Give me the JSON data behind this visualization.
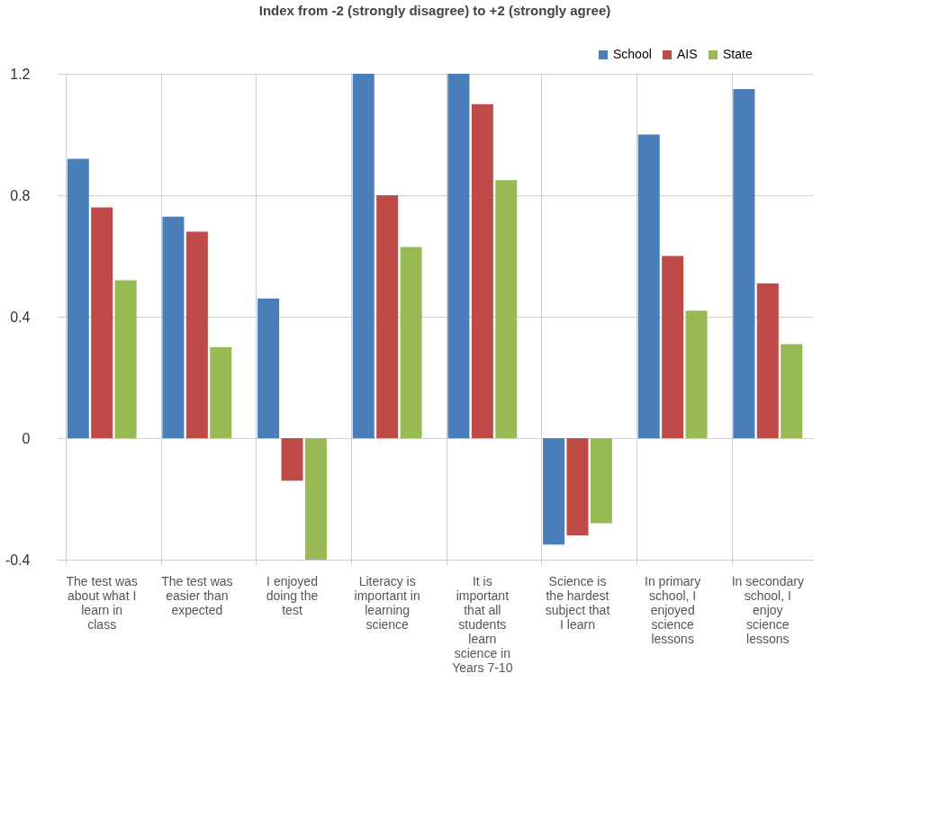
{
  "chart_data": {
    "type": "bar",
    "title": "Index from  -2 (strongly disagree) to +2 (strongly agree)",
    "categories": [
      "The test was about what I learn in class",
      "The test was easier than expected",
      "I enjoyed doing the test",
      "Literacy is important in learning science",
      "It is important that all students learn science in Years 7-10",
      "Science is the hardest subject that I learn",
      "In primary school, I enjoyed science lessons",
      "In secondary school, I enjoy science lessons"
    ],
    "series": [
      {
        "name": "School",
        "color": "#4a7ebb",
        "values": [
          0.92,
          0.73,
          0.46,
          1.2,
          1.2,
          -0.35,
          1.0,
          1.15
        ]
      },
      {
        "name": "AIS",
        "color": "#be4b48",
        "values": [
          0.76,
          0.68,
          -0.14,
          0.8,
          1.1,
          -0.32,
          0.6,
          0.51
        ]
      },
      {
        "name": "State",
        "color": "#98b954",
        "values": [
          0.52,
          0.3,
          -0.4,
          0.63,
          0.85,
          -0.28,
          0.42,
          0.31
        ]
      }
    ],
    "ylim": [
      -0.4,
      1.2
    ],
    "yticks": [
      -0.4,
      0,
      0.4,
      0.8,
      1.2
    ],
    "grid": "y",
    "legend": "top right"
  }
}
